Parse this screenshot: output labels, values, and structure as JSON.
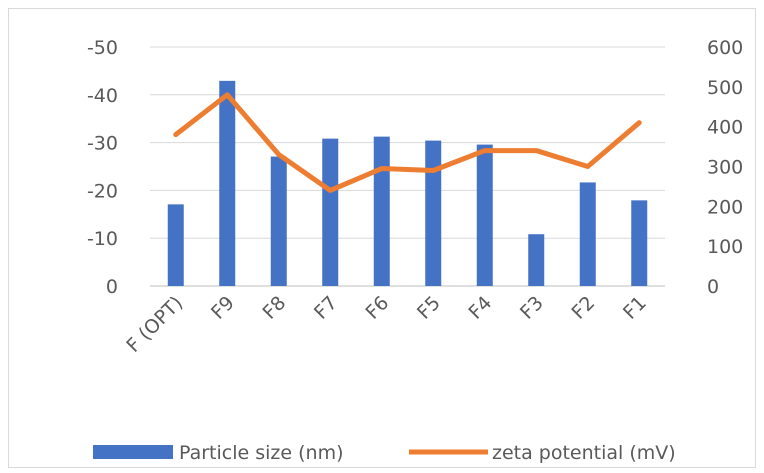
{
  "chart_data": {
    "type": "bar",
    "title": "",
    "categories": [
      "F (OPT)",
      "F9",
      "F8",
      "F7",
      "F6",
      "F5",
      "F4",
      "F3",
      "F2",
      "F1"
    ],
    "y_left": {
      "ticks": [
        "-50",
        "-40",
        "-30",
        "-20",
        "-10",
        "0"
      ],
      "range": [
        0,
        -50
      ]
    },
    "y_right": {
      "ticks": [
        "600",
        "500",
        "400",
        "300",
        "200",
        "100",
        "0"
      ],
      "range": [
        0,
        600
      ]
    },
    "series": [
      {
        "name": "Particle size (nm)",
        "type": "bar",
        "axis": "right",
        "color": "#4472c4",
        "values": [
          205,
          515,
          325,
          370,
          375,
          365,
          355,
          130,
          260,
          215
        ]
      },
      {
        "name": "zeta potential (mV)",
        "type": "line",
        "axis": "right",
        "color": "#ed7d31",
        "values": [
          380,
          480,
          330,
          240,
          295,
          290,
          340,
          340,
          300,
          410
        ]
      }
    ],
    "grid": true,
    "legend_position": "bottom"
  }
}
